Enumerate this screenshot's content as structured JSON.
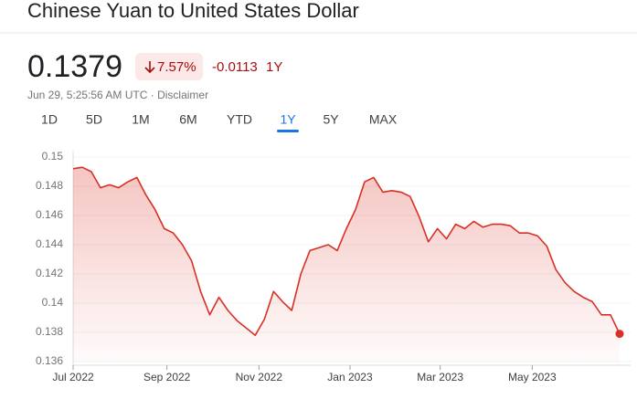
{
  "header": {
    "title": "Chinese Yuan to United States Dollar",
    "price": "0.1379",
    "change_percent": "7.57%",
    "change": "-0.0113",
    "period": "1Y",
    "timestamp": "Jun 29, 5:25:56 AM UTC",
    "separator": "·",
    "disclaimer": "Disclaimer"
  },
  "ranges": [
    {
      "label": "1D"
    },
    {
      "label": "5D"
    },
    {
      "label": "1M"
    },
    {
      "label": "6M"
    },
    {
      "label": "YTD"
    },
    {
      "label": "1Y",
      "selected": true
    },
    {
      "label": "5Y"
    },
    {
      "label": "MAX"
    }
  ],
  "chart_data": {
    "type": "line",
    "color": "#d93025",
    "values": [
      0.1492,
      0.1493,
      0.149,
      0.1479,
      0.1481,
      0.1479,
      0.1483,
      0.1486,
      0.1474,
      0.1464,
      0.1451,
      0.1448,
      0.144,
      0.1429,
      0.1408,
      0.1392,
      0.1404,
      0.1395,
      0.1388,
      0.1383,
      0.1378,
      0.1389,
      0.1408,
      0.1401,
      0.1395,
      0.142,
      0.1436,
      0.1438,
      0.144,
      0.1436,
      0.1451,
      0.1464,
      0.1483,
      0.1486,
      0.1476,
      0.1477,
      0.1476,
      0.1473,
      0.1459,
      0.1442,
      0.1451,
      0.1444,
      0.1454,
      0.1451,
      0.1456,
      0.1452,
      0.1454,
      0.1454,
      0.1453,
      0.1448,
      0.1448,
      0.1446,
      0.1439,
      0.1423,
      0.1414,
      0.1408,
      0.1404,
      0.1401,
      0.1392,
      0.1392,
      0.1379
    ],
    "xlim": [
      0,
      60
    ],
    "xticks": [
      {
        "value": 0,
        "label": "Jul 2022"
      },
      {
        "value": 10.3,
        "label": "Sep 2022"
      },
      {
        "value": 20.4,
        "label": "Nov 2022"
      },
      {
        "value": 30.4,
        "label": "Jan 2023"
      },
      {
        "value": 40.3,
        "label": "Mar 2023"
      },
      {
        "value": 50.4,
        "label": "May 2023"
      }
    ],
    "ylim": [
      0.136,
      0.15
    ],
    "yticks": [
      0.15,
      0.148,
      0.146,
      0.144,
      0.142,
      0.14,
      0.138,
      0.136
    ],
    "grid": true
  }
}
